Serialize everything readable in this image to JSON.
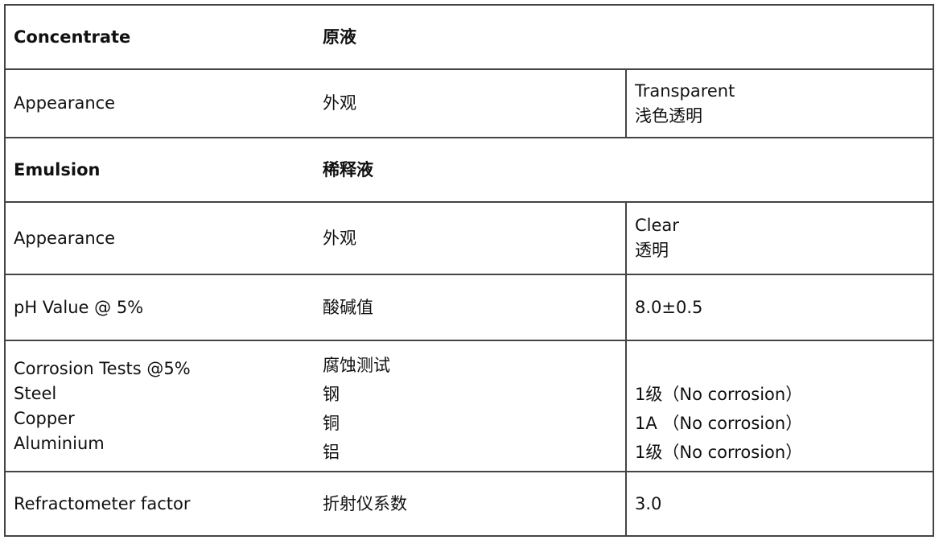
{
  "rows": [
    {
      "en": "Concentrate",
      "zh": "原液",
      "header": true
    },
    {
      "en": "Appearance",
      "zh": "外观",
      "value": [
        "Transparent",
        "浅色透明"
      ]
    },
    {
      "en": "Emulsion",
      "zh": "稀释液",
      "header": true
    },
    {
      "en": "Appearance",
      "zh": "外观",
      "value": [
        "Clear",
        "透明"
      ]
    },
    {
      "en": "pH Value @ 5%",
      "zh": "酸碱值",
      "value": [
        "8.0±0.5"
      ]
    },
    {
      "en_lines": [
        "Corrosion Tests  @5%",
        "Steel",
        "Copper",
        "Aluminium"
      ],
      "zh_lines": [
        "腐蚀测试",
        "钢",
        "铜",
        "铝"
      ],
      "value": [
        "1级（No corrosion）",
        "1A （No corrosion）",
        "1级（No corrosion）"
      ]
    },
    {
      "en": "Refractometer factor",
      "zh": "折射仪系数",
      "value": [
        "3.0"
      ]
    }
  ]
}
